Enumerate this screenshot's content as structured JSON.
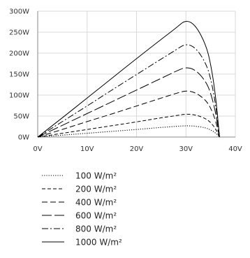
{
  "chart_data": {
    "type": "line",
    "title": "",
    "xlabel": "",
    "ylabel": "",
    "xlim": [
      0,
      40
    ],
    "ylim": [
      0,
      300
    ],
    "x_ticks": [
      0,
      10,
      20,
      30,
      40
    ],
    "y_ticks": [
      0,
      50,
      100,
      150,
      200,
      250,
      300
    ],
    "x_tick_labels": [
      "0V",
      "10V",
      "20V",
      "30V",
      "40V"
    ],
    "y_tick_labels": [
      "0W",
      "50W",
      "100W",
      "150W",
      "200W",
      "250W",
      "300W"
    ],
    "grid": true,
    "legend_position": "bottom",
    "series": [
      {
        "name": "100 W/m²",
        "dash": "dotted",
        "x": [
          0,
          5,
          10,
          15,
          20,
          25,
          28,
          30,
          32,
          34,
          35,
          36,
          36.8
        ],
        "y": [
          0,
          4.5,
          9,
          13.5,
          18,
          23,
          25.5,
          27,
          26,
          22,
          17,
          10,
          0
        ]
      },
      {
        "name": "200 W/m²",
        "dash": "short-dash",
        "x": [
          0,
          5,
          10,
          15,
          20,
          25,
          28,
          30,
          32,
          34,
          35,
          36,
          36.8
        ],
        "y": [
          0,
          9,
          18,
          27,
          36,
          46,
          51,
          55,
          53,
          44,
          35,
          20,
          0
        ]
      },
      {
        "name": "400 W/m²",
        "dash": "dash",
        "x": [
          0,
          5,
          10,
          15,
          20,
          25,
          28,
          30,
          32,
          34,
          35,
          36,
          36.8
        ],
        "y": [
          0,
          18,
          37,
          55,
          74,
          93,
          104,
          111,
          106,
          88,
          70,
          40,
          0
        ]
      },
      {
        "name": "600 W/m²",
        "dash": "long-dash",
        "x": [
          0,
          5,
          10,
          15,
          20,
          25,
          28,
          30,
          32,
          34,
          35,
          36,
          36.8
        ],
        "y": [
          0,
          28,
          56,
          84,
          112,
          140,
          157,
          167,
          160,
          133,
          106,
          60,
          0
        ]
      },
      {
        "name": "800 W/m²",
        "dash": "dash-dot",
        "x": [
          0,
          5,
          10,
          15,
          20,
          25,
          28,
          30,
          32,
          34,
          35,
          36,
          36.8
        ],
        "y": [
          0,
          37,
          74,
          112,
          149,
          186,
          208,
          223,
          213,
          177,
          141,
          80,
          0
        ]
      },
      {
        "name": "1000 W/m²",
        "dash": "solid",
        "x": [
          0,
          5,
          10,
          15,
          20,
          25,
          28,
          30,
          32,
          34,
          35,
          36,
          36.8
        ],
        "y": [
          0,
          46,
          93,
          140,
          187,
          233,
          260,
          280,
          266,
          221,
          176,
          100,
          0
        ]
      }
    ]
  },
  "colors": {
    "line": "#000000",
    "grid": "#d9d9d9",
    "axis": "#888888"
  }
}
